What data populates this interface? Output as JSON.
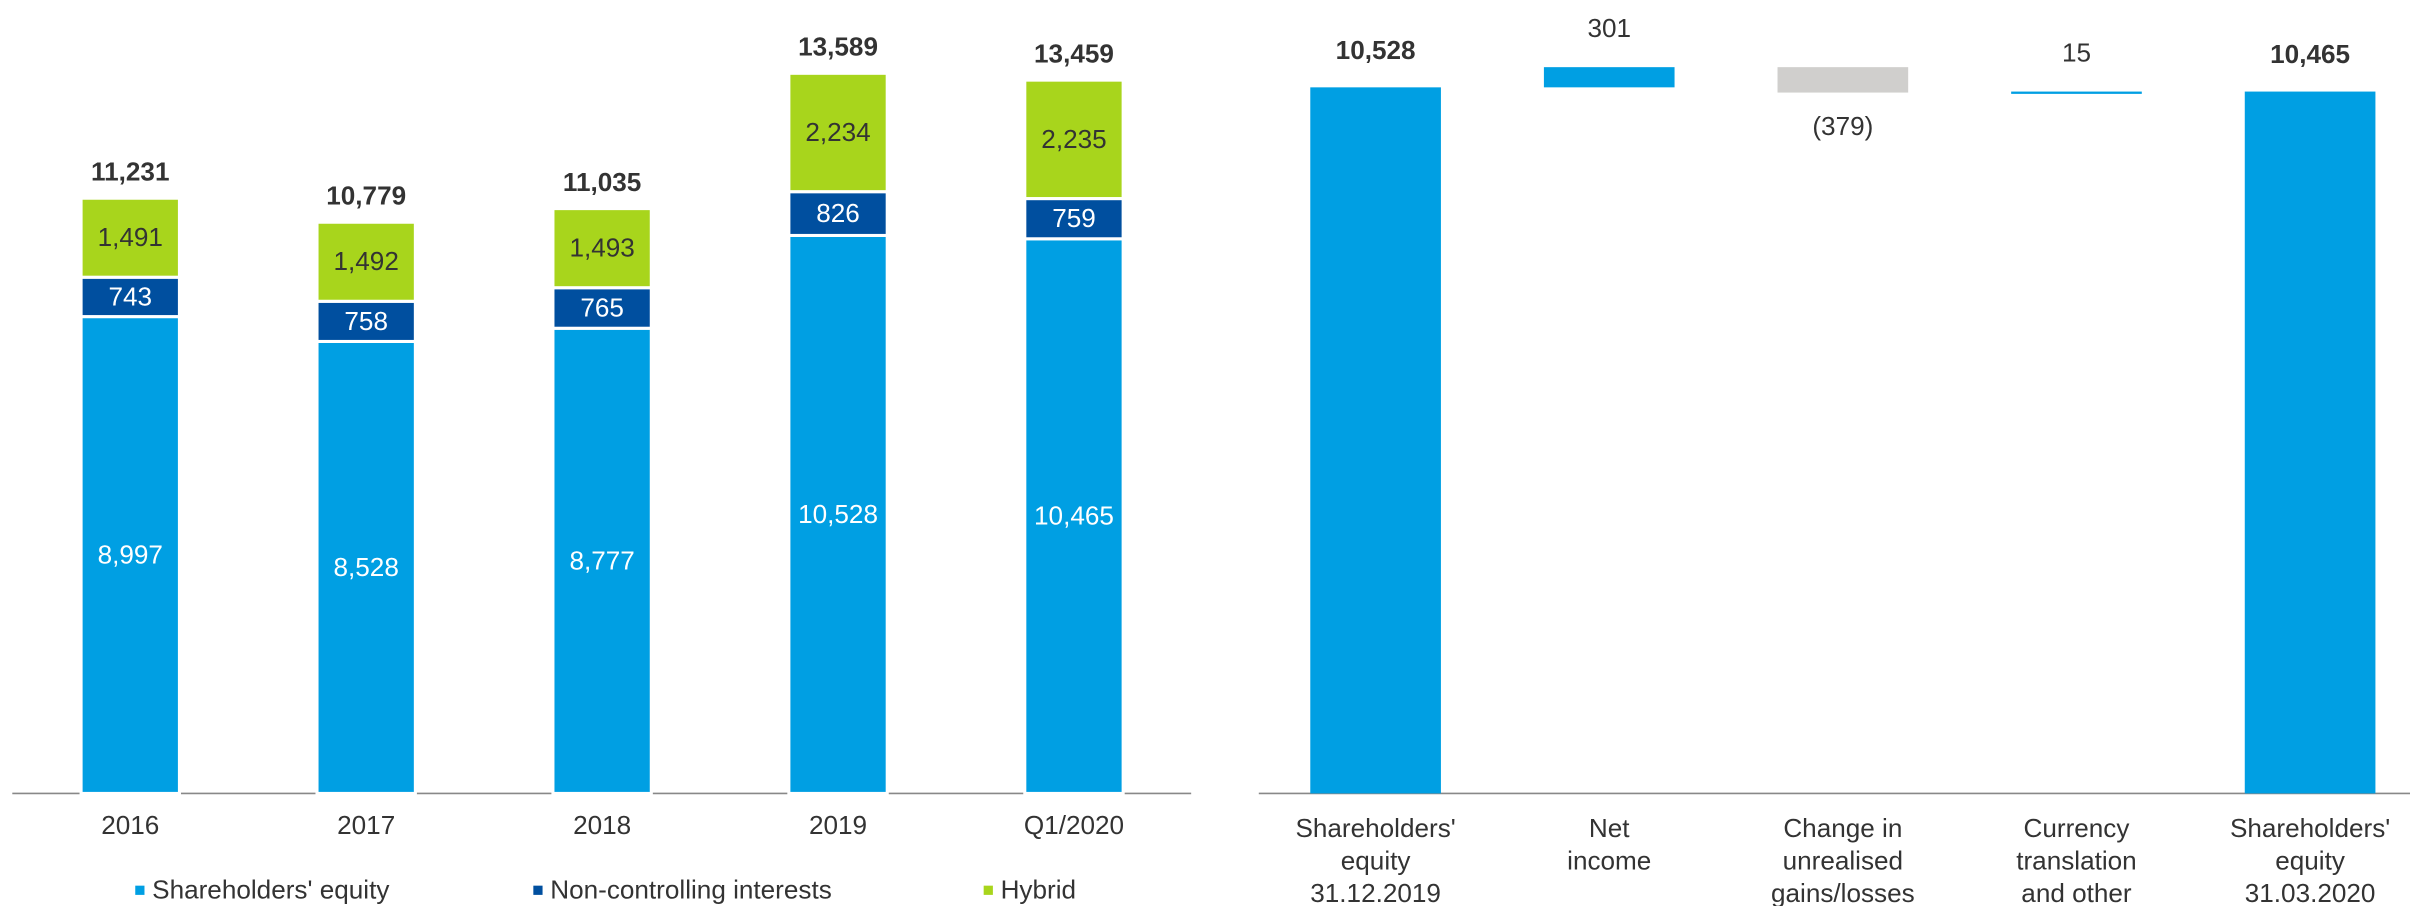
{
  "chart_data": [
    {
      "type": "stacked_bar",
      "categories": [
        "2016",
        "2017",
        "2018",
        "2019",
        "Q1/2020"
      ],
      "series": [
        {
          "name": "Shareholders' equity",
          "color": "#009fe3",
          "label_color": "#ffffff",
          "values": [
            8997,
            8528,
            8777,
            10528,
            10465
          ],
          "value_labels": [
            "8,997",
            "8,528",
            "8,777",
            "10,528",
            "10,465"
          ]
        },
        {
          "name": "Non-controlling interests",
          "color": "#004f9f",
          "label_color": "#ffffff",
          "values": [
            743,
            758,
            765,
            826,
            759
          ],
          "value_labels": [
            "743",
            "758",
            "765",
            "826",
            "759"
          ]
        },
        {
          "name": "Hybrid",
          "color": "#a8d51c",
          "label_color": "#333333",
          "values": [
            1491,
            1492,
            1493,
            2234,
            2235
          ],
          "value_labels": [
            "1,491",
            "1,492",
            "1,493",
            "2,234",
            "2,235"
          ]
        }
      ],
      "totals": [
        11231,
        10779,
        11035,
        13589,
        13459
      ],
      "totals_labels": [
        "11,231",
        "10,779",
        "11,035",
        "13,589",
        "13,459"
      ],
      "ylim": [
        0,
        14500
      ],
      "legend": "bottom"
    },
    {
      "type": "waterfall",
      "categories": [
        [
          "Shareholders'",
          "equity",
          "31.12.2019"
        ],
        [
          "Net",
          "income"
        ],
        [
          "Change in",
          "unrealised",
          "gains/losses"
        ],
        [
          "Currency",
          "translation",
          "and other"
        ],
        [
          "Shareholders'",
          "equity",
          "31.03.2020"
        ]
      ],
      "values": [
        10528,
        301,
        -379,
        15,
        10465
      ],
      "value_labels": [
        "10,528",
        "301",
        "(379)",
        "15",
        "10,465"
      ],
      "measures": [
        "total",
        "relative",
        "relative",
        "relative",
        "total"
      ],
      "colors": {
        "total": "#009fe3",
        "increase": "#009fe3",
        "decrease": "#d0cfcd"
      },
      "ylim": [
        0,
        11000
      ]
    }
  ]
}
